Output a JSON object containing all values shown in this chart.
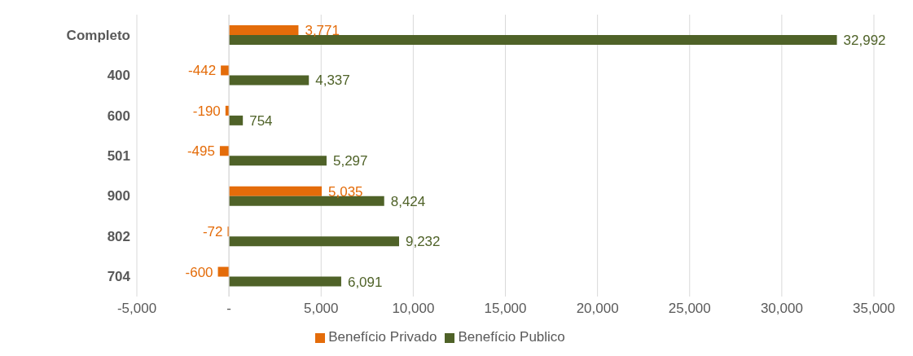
{
  "chart_data": {
    "type": "bar",
    "orientation": "horizontal",
    "categories": [
      "Completo",
      "400",
      "600",
      "501",
      "900",
      "802",
      "704"
    ],
    "series": [
      {
        "name": "Benefício Privado",
        "color": "#e46c0a",
        "values": [
          3771,
          -442,
          -190,
          -495,
          5035,
          -72,
          -600
        ],
        "value_labels": [
          "3,771",
          "-442",
          "-190",
          "-495",
          "5,035",
          "-72",
          "-600"
        ]
      },
      {
        "name": "Benefício Publico",
        "color": "#4f6228",
        "values": [
          32992,
          4337,
          754,
          5297,
          8424,
          9232,
          6091
        ],
        "value_labels": [
          "32,992",
          "4,337",
          "754",
          "5,297",
          "8,424",
          "9,232",
          "6,091"
        ]
      }
    ],
    "xlim": [
      -5000,
      35000
    ],
    "xticks": [
      {
        "value": -5000,
        "label": "-5,000"
      },
      {
        "value": 0,
        "label": "-"
      },
      {
        "value": 5000,
        "label": "5,000"
      },
      {
        "value": 10000,
        "label": "10,000"
      },
      {
        "value": 15000,
        "label": "15,000"
      },
      {
        "value": 20000,
        "label": "20,000"
      },
      {
        "value": 25000,
        "label": "25,000"
      },
      {
        "value": 30000,
        "label": "30,000"
      },
      {
        "value": 35000,
        "label": "35,000"
      }
    ],
    "grid": "x",
    "legend": "bottom"
  }
}
